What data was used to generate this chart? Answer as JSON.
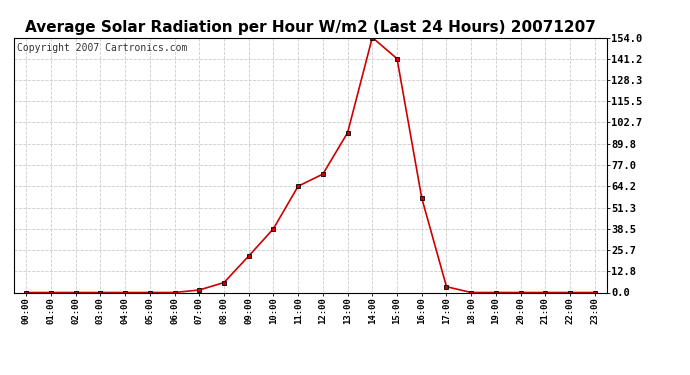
{
  "title": "Average Solar Radiation per Hour W/m2 (Last 24 Hours) 20071207",
  "copyright": "Copyright 2007 Cartronics.com",
  "hours": [
    "00:00",
    "01:00",
    "02:00",
    "03:00",
    "04:00",
    "05:00",
    "06:00",
    "07:00",
    "08:00",
    "09:00",
    "10:00",
    "11:00",
    "12:00",
    "13:00",
    "14:00",
    "15:00",
    "16:00",
    "17:00",
    "18:00",
    "19:00",
    "20:00",
    "21:00",
    "22:00",
    "23:00"
  ],
  "values": [
    0,
    0,
    0,
    0,
    0,
    0,
    0,
    1.5,
    6.0,
    22.0,
    38.5,
    64.2,
    71.5,
    96.5,
    154.0,
    141.2,
    57.0,
    3.5,
    0,
    0,
    0,
    0,
    0,
    0
  ],
  "yticks": [
    0.0,
    12.8,
    25.7,
    38.5,
    51.3,
    64.2,
    77.0,
    89.8,
    102.7,
    115.5,
    128.3,
    141.2,
    154.0
  ],
  "ymax": 154.0,
  "line_color": "#cc0000",
  "marker_color": "#000000",
  "bg_color": "#ffffff",
  "grid_color": "#cccccc",
  "title_fontsize": 11,
  "copyright_fontsize": 7
}
